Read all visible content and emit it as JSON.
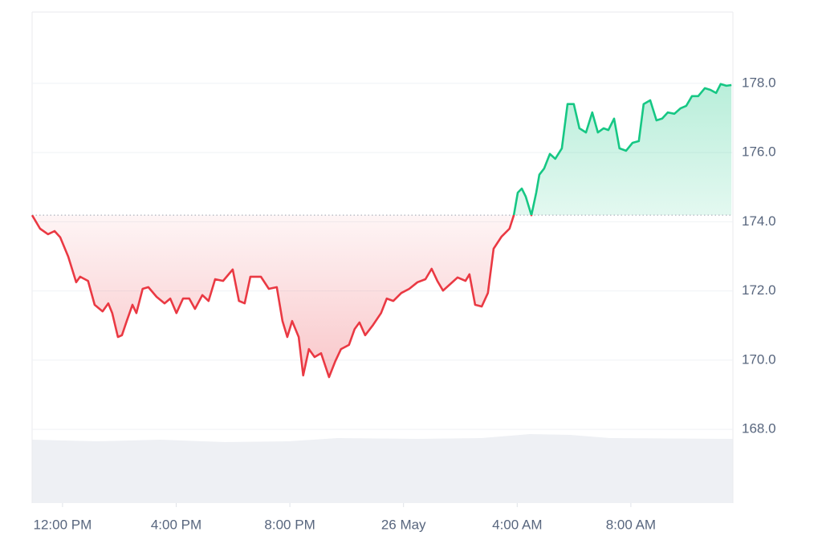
{
  "chart_data": {
    "type": "line",
    "x": [
      10.93,
      11.21,
      11.49,
      11.72,
      11.92,
      12.2,
      12.48,
      12.62,
      12.9,
      13.13,
      13.41,
      13.61,
      13.75,
      13.95,
      14.09,
      14.26,
      14.46,
      14.6,
      14.82,
      15.02,
      15.31,
      15.59,
      15.79,
      16.01,
      16.24,
      16.46,
      16.66,
      16.92,
      17.14,
      17.37,
      17.65,
      17.99,
      18.21,
      18.41,
      18.61,
      18.98,
      19.26,
      19.54,
      19.74,
      19.91,
      20.08,
      20.31,
      20.47,
      20.67,
      20.87,
      21.1,
      21.38,
      21.6,
      21.8,
      22.08,
      22.28,
      22.45,
      22.65,
      22.93,
      23.21,
      23.41,
      23.64,
      23.92,
      24.2,
      24.49,
      24.77,
      24.99,
      25.19,
      25.39,
      25.62,
      25.9,
      26.18,
      26.32,
      26.52,
      26.75,
      26.97,
      27.17,
      27.45,
      27.73,
      27.88,
      28.02,
      28.16,
      28.3,
      28.5,
      28.67,
      28.78,
      28.95,
      29.15,
      29.34,
      29.57,
      29.77,
      29.99,
      30.19,
      30.42,
      30.64,
      30.84,
      31.04,
      31.21,
      31.41,
      31.6,
      31.83,
      32.06,
      32.28,
      32.45,
      32.68,
      32.9,
      33.1,
      33.3,
      33.53,
      33.75,
      33.95,
      34.15,
      34.37,
      34.6,
      34.8,
      35.0,
      35.16,
      35.36,
      35.54
    ],
    "series": [
      {
        "color": "#16c784",
        "down_color": "#ea3943",
        "values": [
          174.19,
          173.8,
          173.64,
          173.73,
          173.55,
          172.99,
          172.25,
          172.41,
          172.29,
          171.6,
          171.41,
          171.64,
          171.36,
          170.67,
          170.72,
          171.13,
          171.6,
          171.36,
          172.06,
          172.11,
          171.83,
          171.64,
          171.78,
          171.36,
          171.78,
          171.78,
          171.48,
          171.88,
          171.71,
          172.34,
          172.29,
          172.62,
          171.71,
          171.64,
          172.41,
          172.41,
          172.06,
          172.11,
          171.13,
          170.67,
          171.13,
          170.67,
          169.56,
          170.32,
          170.09,
          170.2,
          169.51,
          169.97,
          170.32,
          170.44,
          170.9,
          171.09,
          170.72,
          171.02,
          171.36,
          171.78,
          171.71,
          171.94,
          172.06,
          172.25,
          172.34,
          172.64,
          172.29,
          172.01,
          172.18,
          172.39,
          172.29,
          172.48,
          171.6,
          171.55,
          171.94,
          173.22,
          173.57,
          173.8,
          174.19,
          174.84,
          174.96,
          174.73,
          174.19,
          174.84,
          175.36,
          175.54,
          175.96,
          175.82,
          176.12,
          177.4,
          177.4,
          176.7,
          176.58,
          177.16,
          176.58,
          176.7,
          176.65,
          176.98,
          176.12,
          176.05,
          176.28,
          176.33,
          177.4,
          177.51,
          176.93,
          176.98,
          177.16,
          177.12,
          177.28,
          177.35,
          177.63,
          177.63,
          177.86,
          177.81,
          177.72,
          177.98,
          177.93,
          177.95
        ]
      }
    ],
    "baseline": 174.19,
    "xlim": [
      10.93,
      35.59
    ],
    "xticks": [
      {
        "value": 12,
        "label": "12:00 PM"
      },
      {
        "value": 16,
        "label": "4:00 PM"
      },
      {
        "value": 20,
        "label": "8:00 PM"
      },
      {
        "value": 24,
        "label": "26 May"
      },
      {
        "value": 28,
        "label": "4:00 AM"
      },
      {
        "value": 32,
        "label": "8:00 AM"
      }
    ],
    "ylim": [
      165.87,
      180.06
    ],
    "yticks": [
      {
        "value": 168,
        "label": "168.0"
      },
      {
        "value": 170,
        "label": "170.0"
      },
      {
        "value": 172,
        "label": "172.0"
      },
      {
        "value": 174,
        "label": "174.0"
      },
      {
        "value": 176,
        "label": "176.0"
      },
      {
        "value": 178,
        "label": "178.0"
      }
    ],
    "grid": true
  }
}
